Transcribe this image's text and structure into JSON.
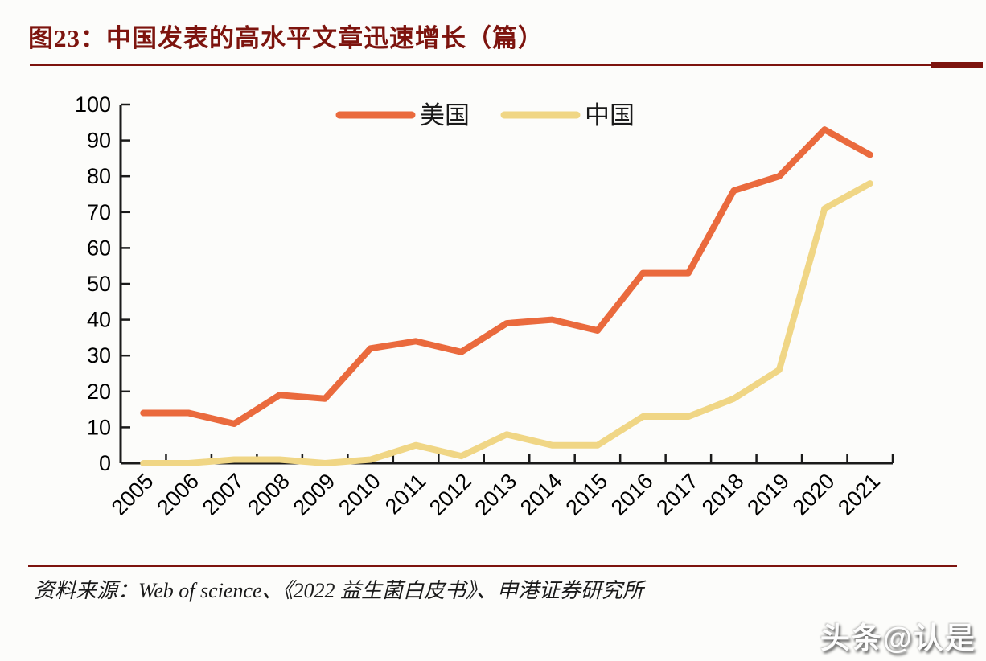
{
  "title": "图23：中国发表的高水平文章迅速增长（篇）",
  "colors": {
    "title_red": "#7d140e",
    "usa_line": "#ea6a3d",
    "china_line": "#f0d685",
    "axis": "#1a1a1a"
  },
  "chart_data": {
    "type": "line",
    "categories": [
      "2005",
      "2006",
      "2007",
      "2008",
      "2009",
      "2010",
      "2011",
      "2012",
      "2013",
      "2014",
      "2015",
      "2016",
      "2017",
      "2018",
      "2019",
      "2020",
      "2021"
    ],
    "series": [
      {
        "name": "美国",
        "color": "#ea6a3d",
        "values": [
          14,
          14,
          11,
          19,
          18,
          32,
          34,
          31,
          39,
          40,
          37,
          53,
          53,
          76,
          80,
          93,
          86
        ]
      },
      {
        "name": "中国",
        "color": "#f0d685",
        "values": [
          0,
          0,
          1,
          1,
          0,
          1,
          5,
          2,
          8,
          5,
          5,
          13,
          13,
          18,
          26,
          71,
          78
        ]
      }
    ],
    "title": "中国发表的高水平文章迅速增长（篇）",
    "xlabel": "",
    "ylabel": "",
    "ylim": [
      0,
      100
    ],
    "yticks": [
      0,
      10,
      20,
      30,
      40,
      50,
      60,
      70,
      80,
      90,
      100
    ],
    "grid": false,
    "legend_position": "top-center"
  },
  "footer": {
    "source_text": "资料来源：Web of science、《2022 益生菌白皮书》、申港证券研究所"
  },
  "watermark": "头条@认是"
}
